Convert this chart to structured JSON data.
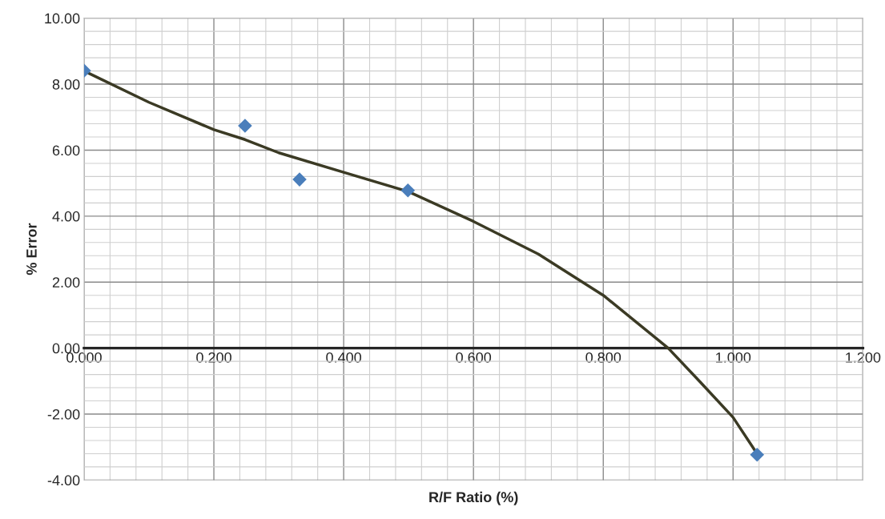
{
  "chart_data": {
    "type": "scatter",
    "xlabel": "R/F Ratio (%)",
    "ylabel": "% Error",
    "series": [
      {
        "color": "#4a7ebb",
        "marker": "diamond",
        "x": [
          0.0,
          0.248,
          0.332,
          0.499,
          1.037
        ],
        "values": [
          8.41,
          6.74,
          5.11,
          4.78,
          -3.23
        ]
      },
      {
        "type": "line",
        "color": "#3b3a24",
        "marker": "none",
        "x": [
          0.0,
          0.1,
          0.2,
          0.248,
          0.3,
          0.4,
          0.5,
          0.6,
          0.7,
          0.8,
          0.9,
          0.95,
          1.0,
          1.037
        ],
        "values": [
          8.4,
          7.45,
          6.62,
          6.32,
          5.92,
          5.33,
          4.74,
          3.84,
          2.85,
          1.6,
          0.0,
          -1.04,
          -2.1,
          -3.2
        ]
      }
    ],
    "xlim": [
      0,
      1.2
    ],
    "xticks": [
      {
        "value": 0,
        "label": "0.000"
      },
      {
        "value": 0.2,
        "label": "0.200"
      },
      {
        "value": 0.4,
        "label": "0.400"
      },
      {
        "value": 0.6,
        "label": "0.600"
      },
      {
        "value": 0.8,
        "label": "0.800"
      },
      {
        "value": 1.0,
        "label": "1.000"
      },
      {
        "value": 1.2,
        "label": "1.200"
      }
    ],
    "ylim": [
      -4,
      10
    ],
    "yticks": [
      {
        "value": -4,
        "label": "-4.00"
      },
      {
        "value": -2,
        "label": "-2.00"
      },
      {
        "value": 0,
        "label": "0.00"
      },
      {
        "value": 2,
        "label": "2.00"
      },
      {
        "value": 4,
        "label": "4.00"
      },
      {
        "value": 6,
        "label": "6.00"
      },
      {
        "value": 8,
        "label": "8.00"
      },
      {
        "value": 10,
        "label": "10.00"
      }
    ],
    "grid": true
  }
}
